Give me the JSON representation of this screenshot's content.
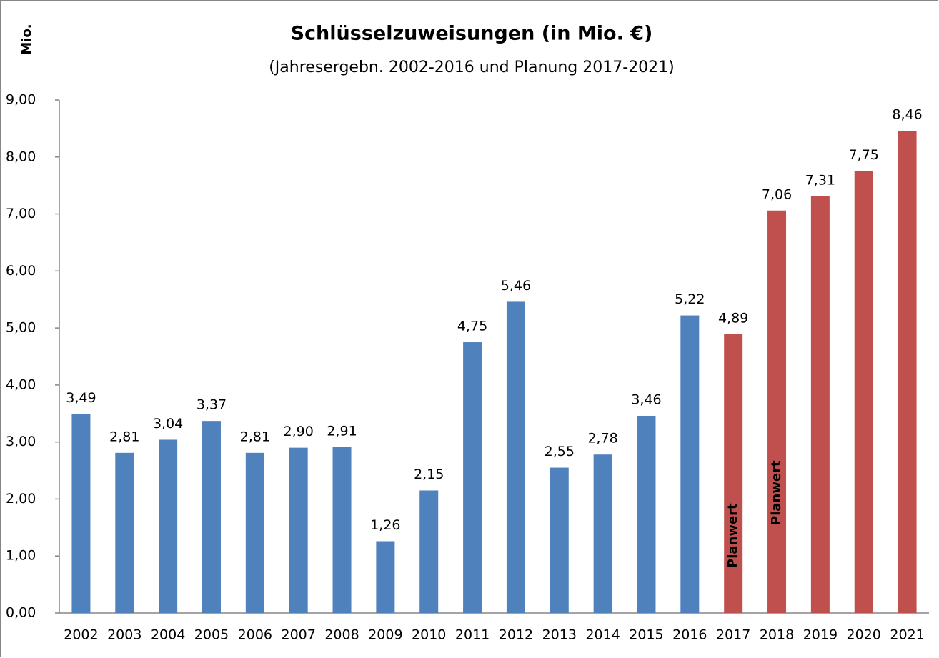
{
  "chart_data": {
    "type": "bar",
    "title": "Schlüsselzuweisungen (in Mio. €)",
    "subtitle": "(Jahresergebn. 2002-2016 und Planung 2017-2021)",
    "y_label": "Mio.",
    "categories": [
      "2002",
      "2003",
      "2004",
      "2005",
      "2006",
      "2007",
      "2008",
      "2009",
      "2010",
      "2011",
      "2012",
      "2013",
      "2014",
      "2015",
      "2016",
      "2017",
      "2018",
      "2019",
      "2020",
      "2021"
    ],
    "values": [
      3.49,
      2.81,
      3.04,
      3.37,
      2.81,
      2.9,
      2.91,
      1.26,
      2.15,
      4.75,
      5.46,
      2.55,
      2.78,
      3.46,
      5.22,
      4.89,
      7.06,
      7.31,
      7.75,
      8.46
    ],
    "value_labels": [
      "3,49",
      "2,81",
      "3,04",
      "3,37",
      "2,81",
      "2,90",
      "2,91",
      "1,26",
      "2,15",
      "4,75",
      "5,46",
      "2,55",
      "2,78",
      "3,46",
      "5,22",
      "4,89",
      "7,06",
      "7,31",
      "7,75",
      "8,46"
    ],
    "colors": [
      "#4f81bd",
      "#4f81bd",
      "#4f81bd",
      "#4f81bd",
      "#4f81bd",
      "#4f81bd",
      "#4f81bd",
      "#4f81bd",
      "#4f81bd",
      "#4f81bd",
      "#4f81bd",
      "#4f81bd",
      "#4f81bd",
      "#4f81bd",
      "#4f81bd",
      "#c0504d",
      "#c0504d",
      "#c0504d",
      "#c0504d",
      "#c0504d"
    ],
    "annotations": [
      "Planwert",
      "Planwert"
    ],
    "ylim": [
      0,
      9
    ],
    "yticks": [
      {
        "value": 0,
        "label": "0,00"
      },
      {
        "value": 1,
        "label": "1,00"
      },
      {
        "value": 2,
        "label": "2,00"
      },
      {
        "value": 3,
        "label": "3,00"
      },
      {
        "value": 4,
        "label": "4,00"
      },
      {
        "value": 5,
        "label": "5,00"
      },
      {
        "value": 6,
        "label": "6,00"
      },
      {
        "value": 7,
        "label": "7,00"
      },
      {
        "value": 8,
        "label": "8,00"
      },
      {
        "value": 9,
        "label": "9,00"
      }
    ],
    "grid": false
  }
}
